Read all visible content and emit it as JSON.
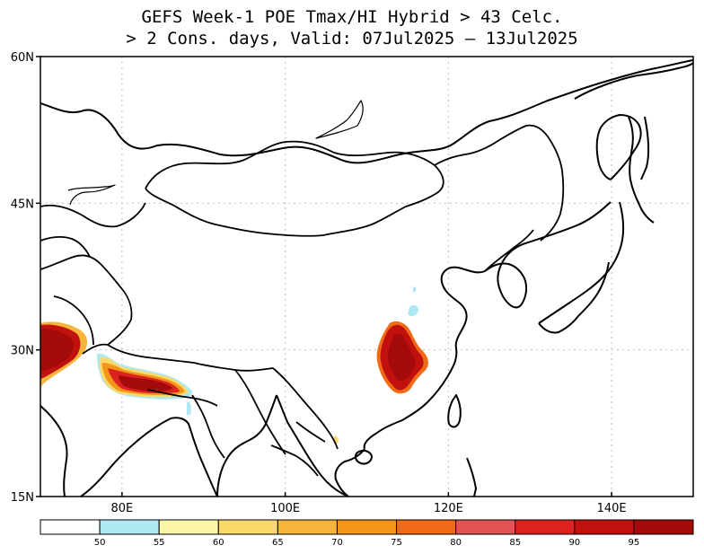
{
  "title_line1": "GEFS Week-1 POE Tmax/HI Hybrid > 43 Celc.",
  "title_line2": "> 2 Cons. days, Valid: 07Jul2025 – 13Jul2025",
  "map": {
    "projection": "lat-lon",
    "lon_range": [
      70,
      150
    ],
    "lat_range": [
      15,
      60
    ],
    "grid": "dotted",
    "lat_labels": [
      {
        "lat": 60,
        "text": "60N"
      },
      {
        "lat": 45,
        "text": "45N"
      },
      {
        "lat": 30,
        "text": "30N"
      },
      {
        "lat": 15,
        "text": "15N"
      }
    ],
    "lon_labels": [
      {
        "lon": 80,
        "text": "80E"
      },
      {
        "lon": 100,
        "text": "100E"
      },
      {
        "lon": 120,
        "text": "120E"
      },
      {
        "lon": 140,
        "text": "140E"
      }
    ]
  },
  "colorbar": {
    "colors": [
      "#ffffff",
      "#aee8f3",
      "#fbf6a8",
      "#f9d96a",
      "#f5b43a",
      "#f39519",
      "#f16a16",
      "#e25454",
      "#dc2121",
      "#c1110f",
      "#a50a0a"
    ],
    "labels": [
      "50",
      "55",
      "60",
      "65",
      "70",
      "75",
      "80",
      "85",
      "90",
      "95"
    ]
  },
  "colors": {
    "border": "#000000",
    "grid": "#bfbfbf",
    "high": "#a50a0a"
  }
}
